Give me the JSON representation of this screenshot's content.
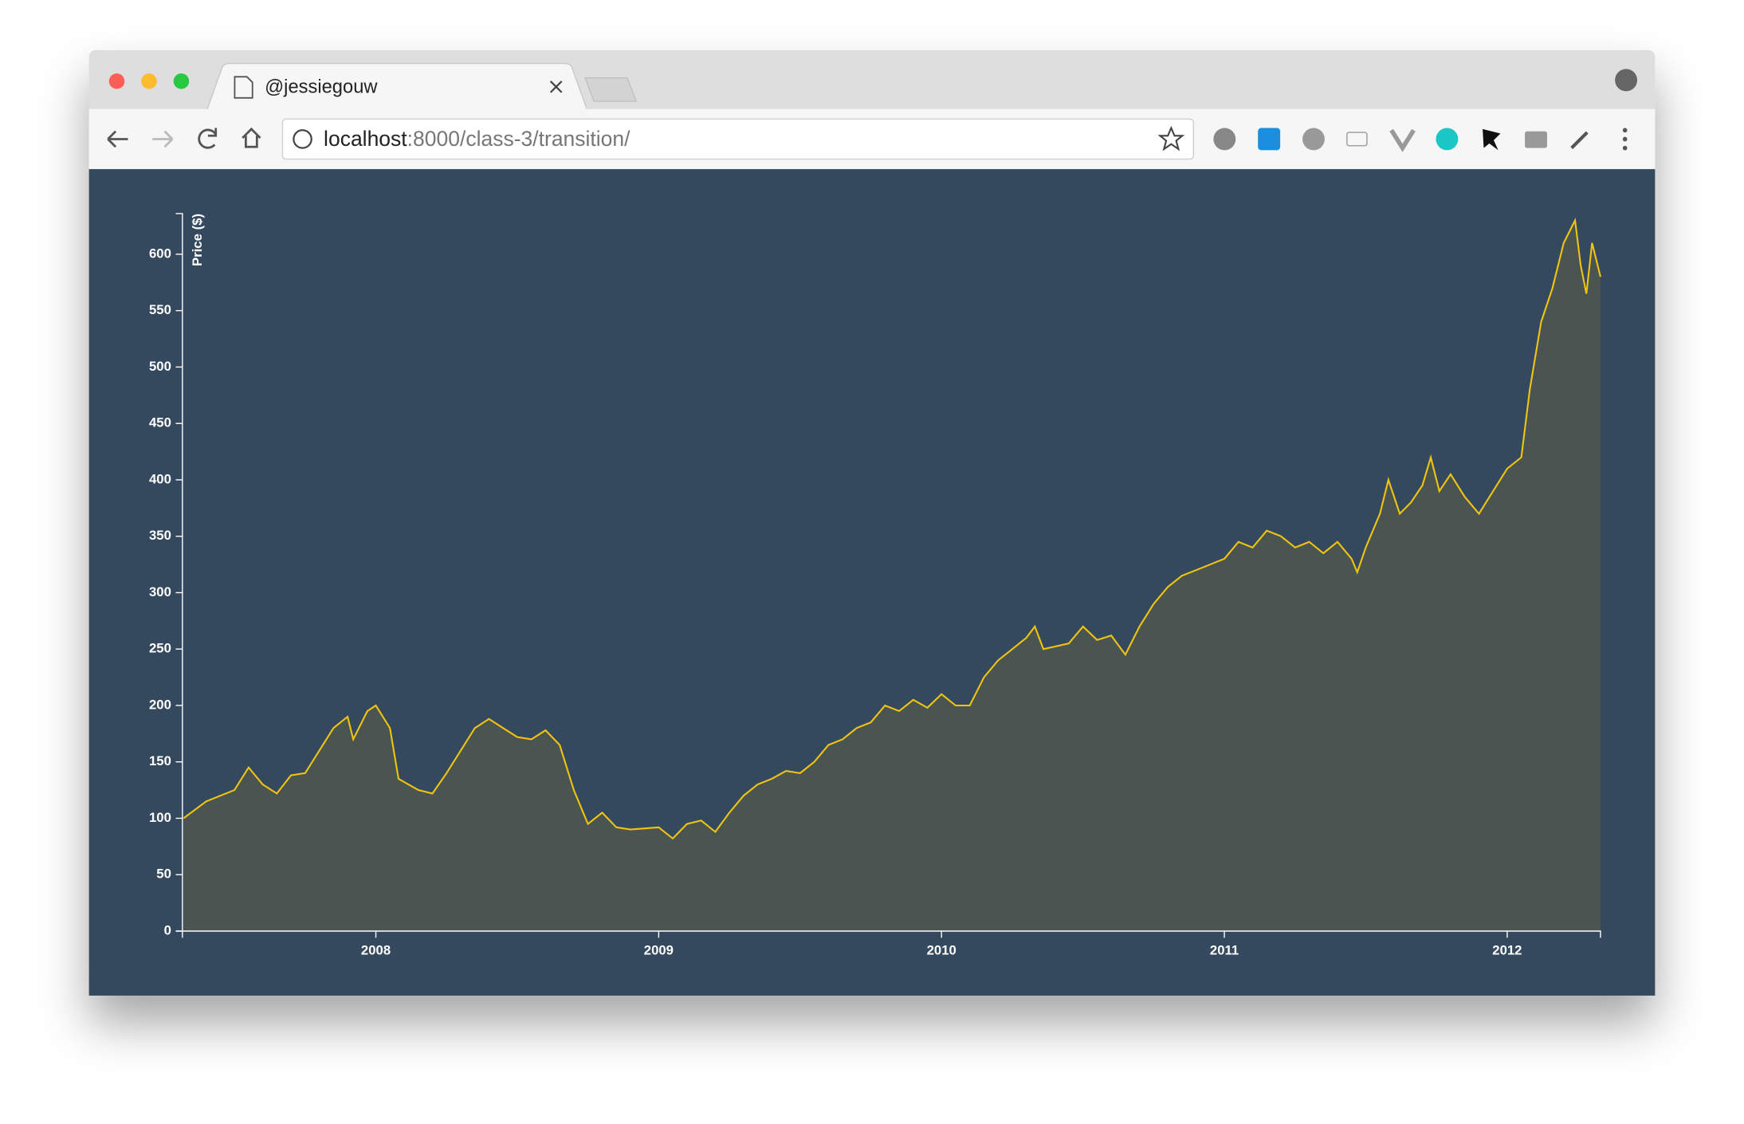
{
  "browser": {
    "tab_title": "@jessiegouw",
    "url_host": "localhost",
    "url_path": ":8000/class-3/transition/"
  },
  "chart_data": {
    "type": "area",
    "y_label": "Price ($)",
    "color": "#f1c40f",
    "fill": "#4a5552",
    "xlim": [
      2007.316,
      2012.33
    ],
    "xticks": [
      2008,
      2009,
      2010,
      2011,
      2012
    ],
    "ylim": [
      0,
      636
    ],
    "yticks": [
      0,
      50,
      100,
      150,
      200,
      250,
      300,
      350,
      400,
      450,
      500,
      550,
      600
    ],
    "x": [
      2007.32,
      2007.4,
      2007.5,
      2007.55,
      2007.6,
      2007.65,
      2007.7,
      2007.75,
      2007.8,
      2007.85,
      2007.9,
      2007.92,
      2007.97,
      2008.0,
      2008.05,
      2008.08,
      2008.15,
      2008.2,
      2008.25,
      2008.3,
      2008.35,
      2008.4,
      2008.45,
      2008.5,
      2008.55,
      2008.6,
      2008.65,
      2008.7,
      2008.75,
      2008.8,
      2008.85,
      2008.9,
      2009.0,
      2009.05,
      2009.1,
      2009.15,
      2009.2,
      2009.25,
      2009.3,
      2009.35,
      2009.4,
      2009.45,
      2009.5,
      2009.55,
      2009.6,
      2009.65,
      2009.7,
      2009.75,
      2009.8,
      2009.85,
      2009.9,
      2009.95,
      2010.0,
      2010.05,
      2010.1,
      2010.15,
      2010.2,
      2010.25,
      2010.3,
      2010.33,
      2010.36,
      2010.45,
      2010.5,
      2010.55,
      2010.6,
      2010.65,
      2010.7,
      2010.75,
      2010.8,
      2010.85,
      2010.9,
      2010.95,
      2011.0,
      2011.05,
      2011.1,
      2011.15,
      2011.2,
      2011.25,
      2011.3,
      2011.35,
      2011.4,
      2011.45,
      2011.47,
      2011.5,
      2011.55,
      2011.58,
      2011.62,
      2011.66,
      2011.7,
      2011.73,
      2011.76,
      2011.8,
      2011.85,
      2011.9,
      2011.95,
      2012.0,
      2012.05,
      2012.08,
      2012.12,
      2012.16,
      2012.2,
      2012.24,
      2012.26,
      2012.28,
      2012.3,
      2012.33
    ],
    "values": [
      100,
      115,
      125,
      145,
      130,
      122,
      138,
      140,
      160,
      180,
      190,
      170,
      195,
      200,
      180,
      135,
      125,
      122,
      140,
      160,
      180,
      188,
      180,
      172,
      170,
      178,
      165,
      125,
      95,
      105,
      92,
      90,
      92,
      82,
      95,
      98,
      88,
      105,
      120,
      130,
      135,
      142,
      140,
      150,
      165,
      170,
      180,
      185,
      200,
      195,
      205,
      198,
      210,
      200,
      200,
      225,
      240,
      250,
      260,
      270,
      250,
      255,
      270,
      258,
      262,
      245,
      270,
      290,
      305,
      315,
      320,
      325,
      330,
      345,
      340,
      355,
      350,
      340,
      345,
      335,
      345,
      330,
      318,
      340,
      370,
      400,
      370,
      380,
      395,
      420,
      390,
      405,
      385,
      370,
      390,
      410,
      420,
      480,
      540,
      570,
      610,
      630,
      590,
      565,
      610,
      580
    ]
  }
}
